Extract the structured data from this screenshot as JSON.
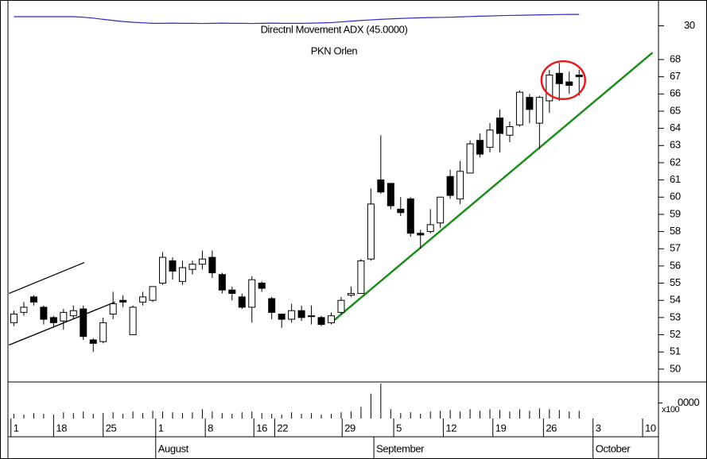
{
  "chart_data": {
    "type": "candlestick",
    "title": "PKN Orlen",
    "open": [
      52.7,
      53.3,
      54.2,
      53.6,
      53.0,
      52.8,
      53.1,
      53.5,
      51.7,
      51.6,
      53.2,
      54.0,
      52.0,
      53.9,
      54.0,
      55.0,
      56.3,
      55.1,
      55.8,
      56.1,
      56.5,
      55.5,
      54.6,
      54.2,
      53.6,
      55.0,
      54.1,
      53.2,
      52.9,
      53.4,
      53.1,
      53.0,
      52.7,
      53.3,
      54.3,
      54.4,
      56.4,
      61.0,
      60.8,
      59.3,
      59.9,
      57.9,
      58.0,
      58.5,
      61.2,
      59.9,
      61.4,
      63.3,
      62.9,
      64.6,
      63.6,
      64.2,
      65.8,
      64.3,
      65.6,
      67.2,
      66.7,
      67.1
    ],
    "high": [
      53.4,
      53.9,
      54.3,
      53.7,
      53.1,
      53.5,
      53.7,
      53.7,
      51.8,
      53.0,
      54.5,
      54.3,
      53.7,
      54.5,
      54.8,
      56.8,
      56.5,
      56.3,
      56.3,
      56.9,
      56.9,
      55.6,
      54.8,
      54.4,
      55.4,
      55.1,
      54.2,
      53.2,
      53.8,
      53.7,
      53.7,
      53.1,
      53.3,
      54.2,
      54.8,
      56.4,
      60.5,
      63.6,
      60.8,
      60.0,
      60.0,
      58.1,
      59.3,
      60.0,
      61.6,
      62.1,
      63.3,
      63.7,
      64.3,
      65.1,
      64.4,
      66.2,
      66.0,
      65.9,
      67.4,
      67.8,
      67.3,
      67.4
    ],
    "low": [
      52.5,
      53.1,
      53.7,
      52.6,
      52.4,
      52.3,
      52.9,
      51.7,
      51.0,
      51.5,
      52.9,
      53.6,
      52.0,
      53.7,
      53.9,
      54.9,
      55.2,
      54.9,
      55.5,
      55.8,
      55.3,
      54.4,
      54.0,
      53.5,
      52.7,
      54.5,
      52.9,
      52.4,
      52.7,
      52.8,
      52.6,
      52.5,
      52.6,
      53.2,
      54.2,
      54.4,
      56.3,
      60.2,
      59.3,
      58.9,
      57.7,
      57.0,
      57.9,
      58.2,
      59.9,
      59.6,
      61.4,
      62.3,
      62.6,
      62.6,
      63.2,
      64.1,
      64.3,
      62.8,
      64.9,
      65.6,
      66.0,
      65.9
    ],
    "close": [
      53.2,
      53.6,
      53.9,
      52.9,
      52.7,
      53.3,
      53.4,
      51.9,
      51.5,
      52.7,
      53.8,
      53.9,
      53.6,
      54.2,
      54.8,
      56.5,
      55.7,
      55.9,
      56.1,
      56.4,
      55.6,
      54.6,
      54.4,
      53.6,
      55.2,
      54.7,
      53.3,
      52.9,
      53.4,
      53.0,
      53.1,
      52.6,
      53.1,
      54.0,
      54.4,
      56.3,
      59.6,
      60.3,
      59.5,
      59.1,
      57.9,
      57.8,
      58.4,
      60.0,
      60.1,
      61.5,
      63.1,
      62.5,
      63.9,
      63.7,
      64.1,
      66.1,
      65.1,
      65.8,
      67.1,
      66.6,
      66.5,
      67.0
    ],
    "up_color": "#ffffff",
    "down_color": "#000000",
    "xlim": [
      -0.6,
      65
    ],
    "xticks": [
      {
        "value": -0.3,
        "label": "1"
      },
      {
        "value": 4,
        "label": "18"
      },
      {
        "value": 9,
        "label": "25"
      },
      {
        "value": 14.3,
        "label": "1"
      },
      {
        "value": 19.3,
        "label": "8"
      },
      {
        "value": 24.2,
        "label": "16"
      },
      {
        "value": 26.3,
        "label": "22"
      },
      {
        "value": 33.1,
        "label": "29"
      },
      {
        "value": 38.3,
        "label": "5"
      },
      {
        "value": 43.3,
        "label": "12"
      },
      {
        "value": 48.3,
        "label": "19"
      },
      {
        "value": 53.4,
        "label": "26"
      },
      {
        "value": 58.4,
        "label": "3"
      },
      {
        "value": 63.4,
        "label": "10"
      }
    ],
    "month_ticks": [
      {
        "value": 14.3,
        "label": "August"
      },
      {
        "value": 36.3,
        "label": "September"
      },
      {
        "value": 58.4,
        "label": "October"
      }
    ],
    "ylim": [
      49.3,
      71
    ],
    "yticks": [
      50,
      51,
      52,
      53,
      54,
      55,
      56,
      57,
      58,
      59,
      60,
      61,
      62,
      63,
      64,
      65,
      66,
      67,
      68
    ],
    "indicator": {
      "name": "Directnl Movement ADX (45.0000)",
      "color": "#2b2bc8",
      "ylim": [
        20,
        40
      ],
      "yticks": [
        30
      ],
      "values": [
        35.1,
        35.1,
        35.1,
        35.1,
        35.1,
        35.1,
        35.1,
        34.8,
        34.3,
        33.6,
        33.0,
        32.4,
        32.0,
        31.7,
        31.4,
        31.4,
        31.5,
        31.4,
        31.4,
        31.3,
        31.4,
        31.5,
        31.4,
        31.4,
        31.3,
        31.4,
        31.5,
        31.4,
        31.4,
        31.4,
        31.5,
        31.6,
        31.8,
        32.2,
        32.6,
        33.0,
        33.3,
        33.6,
        33.9,
        34.1,
        34.3,
        34.5,
        34.6,
        34.7,
        34.8,
        35.0,
        35.2,
        35.4,
        35.5,
        35.7,
        35.8,
        35.9,
        36.0,
        36.1,
        36.2,
        36.3,
        36.4,
        36.4
      ]
    },
    "volume": {
      "label": "x100",
      "color": "#000000",
      "ylim": [
        0,
        45000
      ],
      "yticks": [
        {
          "value": 20000,
          "label": "0000"
        }
      ],
      "values": [
        6000,
        5000,
        7000,
        6000,
        5000,
        8000,
        7000,
        9000,
        6000,
        7000,
        8000,
        6000,
        9000,
        7000,
        10000,
        9000,
        8000,
        7000,
        8000,
        12000,
        9000,
        7000,
        6000,
        8000,
        9000,
        7000,
        6000,
        5000,
        8000,
        6000,
        7000,
        5000,
        6000,
        8000,
        9000,
        15000,
        32000,
        45000,
        12000,
        7000,
        8000,
        6000,
        9000,
        10000,
        11000,
        9000,
        12000,
        10000,
        12000,
        11000,
        9000,
        12000,
        10000,
        13000,
        12000,
        11000,
        9000,
        10000
      ]
    },
    "trendlines": [
      {
        "color": "#1e8c1e",
        "x": [
          32,
          64.4
        ],
        "y": [
          52.7,
          68.4
        ]
      },
      {
        "color": "#000000",
        "x": [
          -0.5,
          7.1
        ],
        "y": [
          54.4,
          56.2
        ]
      },
      {
        "color": "#000000",
        "x": [
          -0.5,
          10.2
        ],
        "y": [
          51.4,
          53.9
        ]
      }
    ],
    "highlight": {
      "color": "#e02020",
      "x": [
        53.2,
        57.6
      ],
      "y": [
        65.7,
        67.9
      ]
    }
  }
}
